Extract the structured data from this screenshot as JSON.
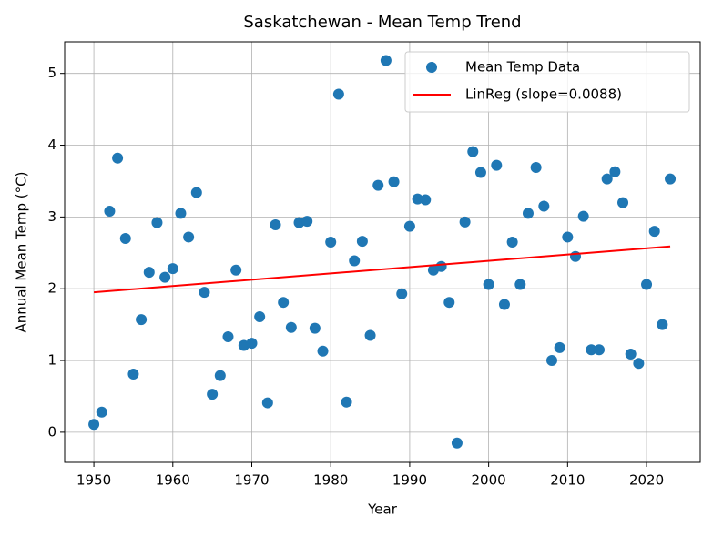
{
  "chart_data": {
    "type": "scatter",
    "title": "Saskatchewan - Mean Temp Trend",
    "x_label": "Year",
    "y_label": "Annual Mean Temp (°C)",
    "xlim": [
      1946.3,
      2026.8
    ],
    "ylim": [
      -0.42,
      5.44
    ],
    "xticks": [
      1950,
      1960,
      1970,
      1980,
      1990,
      2000,
      2010,
      2020
    ],
    "yticks": [
      0,
      1,
      2,
      3,
      4,
      5
    ],
    "grid": true,
    "legend": "upper-right",
    "series": [
      {
        "name": "Mean Temp Data",
        "type": "scatter",
        "color": "#1f77b4",
        "x": [
          1950,
          1951,
          1952,
          1953,
          1954,
          1955,
          1956,
          1957,
          1958,
          1959,
          1960,
          1961,
          1962,
          1963,
          1964,
          1965,
          1966,
          1967,
          1968,
          1969,
          1970,
          1971,
          1972,
          1973,
          1974,
          1975,
          1976,
          1977,
          1978,
          1979,
          1980,
          1981,
          1982,
          1983,
          1984,
          1985,
          1986,
          1987,
          1988,
          1989,
          1990,
          1991,
          1992,
          1993,
          1994,
          1995,
          1996,
          1997,
          1998,
          1999,
          2000,
          2001,
          2002,
          2003,
          2004,
          2005,
          2006,
          2007,
          2008,
          2009,
          2010,
          2011,
          2012,
          2013,
          2014,
          2015,
          2016,
          2017,
          2018,
          2019,
          2020,
          2021,
          2022,
          2023
        ],
        "values": [
          0.11,
          0.28,
          3.08,
          3.82,
          2.7,
          0.81,
          1.57,
          2.23,
          2.92,
          2.16,
          2.28,
          3.05,
          2.72,
          3.34,
          1.95,
          0.53,
          0.79,
          1.33,
          2.26,
          1.21,
          1.24,
          1.61,
          0.41,
          2.89,
          1.81,
          1.46,
          2.92,
          2.94,
          1.45,
          1.13,
          2.65,
          4.71,
          0.42,
          2.39,
          2.66,
          1.35,
          3.44,
          5.18,
          3.49,
          1.93,
          2.87,
          3.25,
          3.24,
          2.26,
          2.31,
          1.81,
          -0.15,
          2.93,
          3.91,
          3.62,
          2.06,
          3.72,
          1.78,
          2.65,
          2.06,
          3.05,
          3.69,
          3.15,
          1.0,
          1.18,
          2.72,
          2.45,
          3.01,
          1.15,
          1.15,
          3.53,
          3.63,
          3.2,
          1.09,
          0.96,
          2.06,
          2.8,
          1.5,
          3.53
        ]
      },
      {
        "name": "LinReg (slope=0.0088)",
        "type": "line",
        "color": "#ff0000",
        "x": [
          1950,
          2023
        ],
        "values": [
          1.95,
          2.59
        ]
      }
    ]
  }
}
